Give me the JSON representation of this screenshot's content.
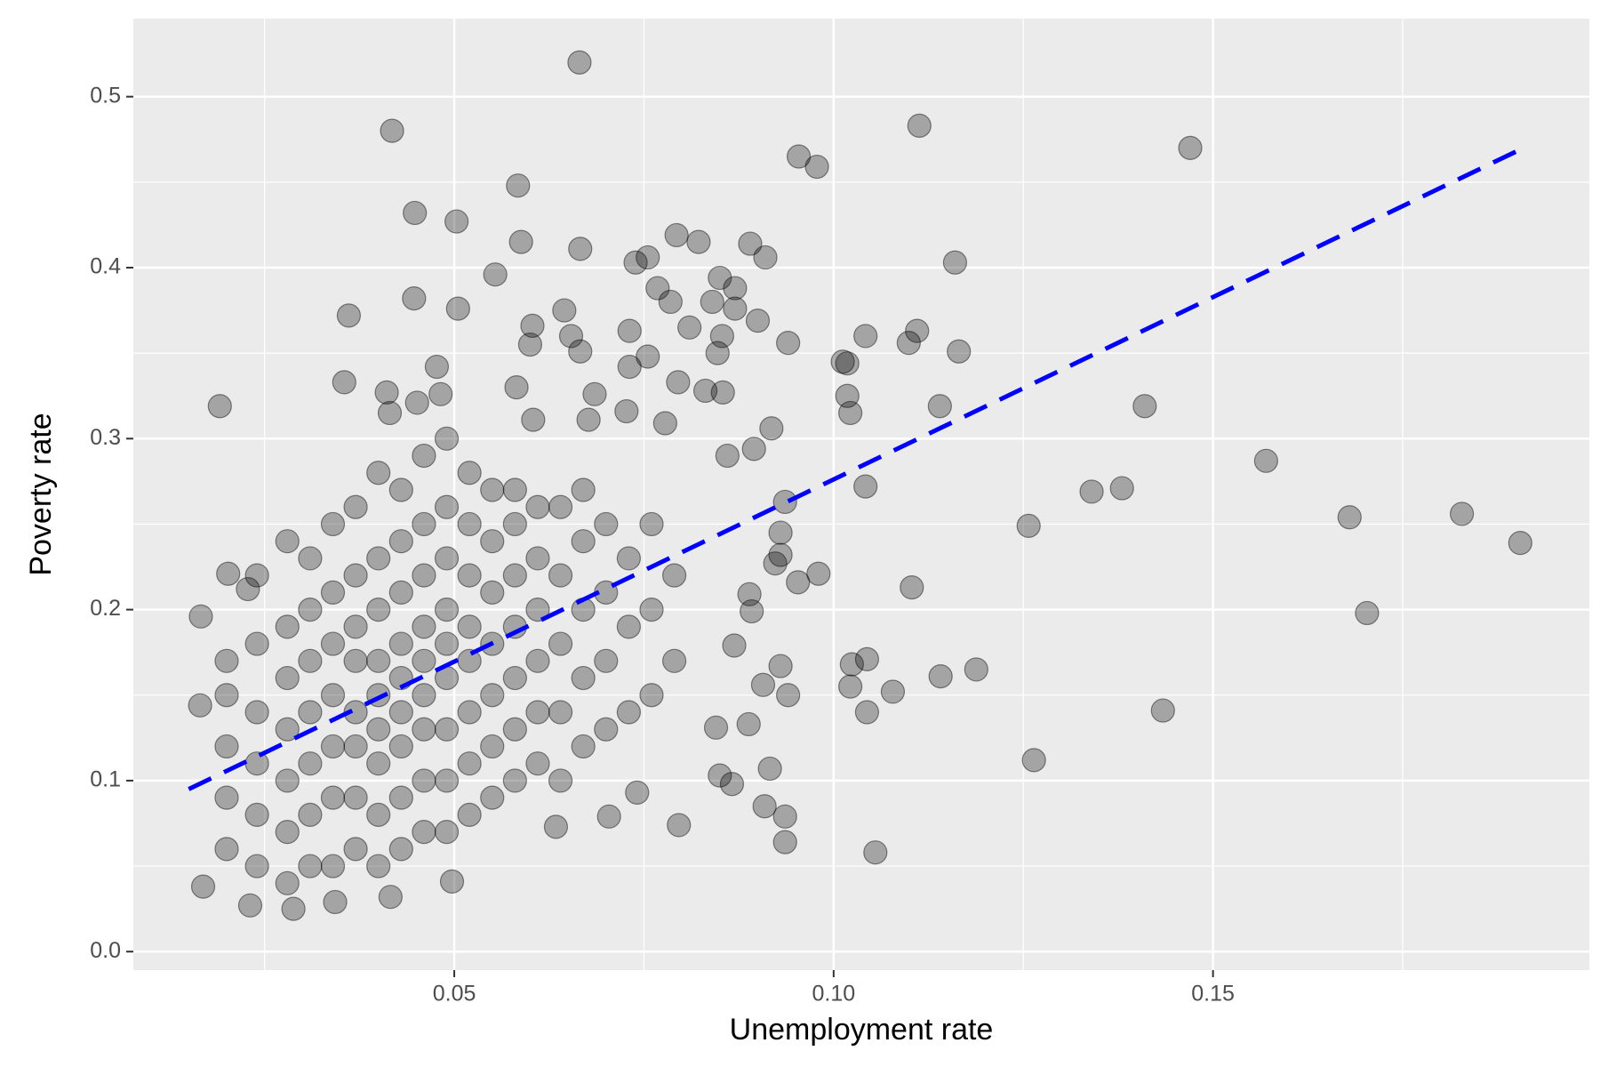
{
  "chart_data": {
    "type": "scatter",
    "x_label": "Unemployment rate",
    "y_label": "Poverty rate",
    "xlim": [
      0.0077,
      0.1996
    ],
    "ylim": [
      -0.0108,
      0.5456
    ],
    "xticks": [
      0.05,
      {
        "value": 0.1,
        "label": "0.10"
      },
      0.15
    ],
    "yticks": [
      {
        "value": 0,
        "label": "0.0"
      },
      0.1,
      0.2,
      0.3,
      0.4,
      0.5
    ],
    "x_minor_grid": [
      0.025,
      0.075,
      0.125,
      0.175
    ],
    "y_minor_grid": [
      0.05,
      0.15,
      0.25,
      0.35,
      0.45
    ],
    "grid": true,
    "color": "#000000",
    "x": [
      0.0665,
      0.0418,
      0.1113,
      0.147,
      0.0954,
      0.0978,
      0.0584,
      0.0448,
      0.0503,
      0.0588,
      0.0666,
      0.0793,
      0.0822,
      0.089,
      0.091,
      0.116,
      0.0739,
      0.0755,
      0.0554,
      0.085,
      0.087,
      0.0768,
      0.0447,
      0.0785,
      0.084,
      0.087,
      0.0505,
      0.0645,
      0.0361,
      0.09,
      0.081,
      0.0603,
      0.0731,
      0.111,
      0.0654,
      0.0853,
      0.1042,
      0.06,
      0.094,
      0.1099,
      0.1165,
      0.0666,
      0.0847,
      0.1012,
      0.1018,
      0.0477,
      0.0755,
      0.0731,
      0.0582,
      0.0355,
      0.0795,
      0.0831,
      0.0411,
      0.0482,
      0.0685,
      0.1018,
      0.0854,
      0.0191,
      0.141,
      0.114,
      0.0451,
      0.0415,
      0.1022,
      0.0604,
      0.0727,
      0.0918,
      0.0677,
      0.0778,
      0.157,
      0.086,
      0.0895,
      0.134,
      0.138,
      0.1042,
      0.0936,
      0.1257,
      0.168,
      0.1828,
      0.1905,
      0.093,
      0.093,
      0.0923,
      0.098,
      0.0953,
      0.1703,
      0.1103,
      0.0889,
      0.0892,
      0.0869,
      0.1024,
      0.1044,
      0.1141,
      0.1188,
      0.093,
      0.1022,
      0.1078,
      0.094,
      0.0907,
      0.1044,
      0.1434,
      0.0845,
      0.0888,
      0.1264,
      0.0916,
      0.085,
      0.0866,
      0.0909,
      0.0936,
      0.0796,
      0.0704,
      0.0634,
      0.0936,
      0.1055,
      0.0741,
      0.0497,
      0.0416,
      0.0166,
      0.0202,
      0.0228,
      0.0165,
      0.0169,
      0.0288,
      0.0231,
      0.0343,
      0.02,
      0.02,
      0.02,
      0.02,
      0.02,
      0.024,
      0.024,
      0.024,
      0.024,
      0.024,
      0.024,
      0.028,
      0.028,
      0.028,
      0.028,
      0.028,
      0.028,
      0.028,
      0.031,
      0.031,
      0.031,
      0.031,
      0.031,
      0.031,
      0.031,
      0.034,
      0.034,
      0.034,
      0.034,
      0.034,
      0.034,
      0.034,
      0.037,
      0.037,
      0.037,
      0.037,
      0.037,
      0.037,
      0.037,
      0.037,
      0.04,
      0.04,
      0.04,
      0.04,
      0.04,
      0.04,
      0.04,
      0.04,
      0.04,
      0.043,
      0.043,
      0.043,
      0.043,
      0.043,
      0.043,
      0.043,
      0.043,
      0.043,
      0.046,
      0.046,
      0.046,
      0.046,
      0.046,
      0.046,
      0.046,
      0.046,
      0.046,
      0.049,
      0.049,
      0.049,
      0.049,
      0.049,
      0.049,
      0.049,
      0.049,
      0.049,
      0.052,
      0.052,
      0.052,
      0.052,
      0.052,
      0.052,
      0.052,
      0.052,
      0.055,
      0.055,
      0.055,
      0.055,
      0.055,
      0.055,
      0.055,
      0.058,
      0.058,
      0.058,
      0.058,
      0.058,
      0.058,
      0.058,
      0.061,
      0.061,
      0.061,
      0.061,
      0.061,
      0.061,
      0.064,
      0.064,
      0.064,
      0.064,
      0.064,
      0.067,
      0.067,
      0.067,
      0.067,
      0.067,
      0.07,
      0.07,
      0.07,
      0.07,
      0.073,
      0.073,
      0.073,
      0.076,
      0.076,
      0.076,
      0.079,
      0.079
    ],
    "values": [
      0.52,
      0.48,
      0.483,
      0.47,
      0.465,
      0.459,
      0.448,
      0.432,
      0.427,
      0.415,
      0.411,
      0.419,
      0.415,
      0.414,
      0.406,
      0.403,
      0.403,
      0.406,
      0.396,
      0.394,
      0.388,
      0.388,
      0.382,
      0.38,
      0.38,
      0.376,
      0.376,
      0.375,
      0.372,
      0.369,
      0.365,
      0.366,
      0.363,
      0.363,
      0.36,
      0.36,
      0.36,
      0.355,
      0.356,
      0.356,
      0.351,
      0.351,
      0.35,
      0.345,
      0.344,
      0.342,
      0.348,
      0.342,
      0.33,
      0.333,
      0.333,
      0.328,
      0.327,
      0.326,
      0.326,
      0.325,
      0.327,
      0.319,
      0.319,
      0.319,
      0.321,
      0.315,
      0.315,
      0.311,
      0.316,
      0.306,
      0.311,
      0.309,
      0.287,
      0.29,
      0.294,
      0.269,
      0.271,
      0.272,
      0.263,
      0.249,
      0.254,
      0.256,
      0.239,
      0.245,
      0.232,
      0.227,
      0.221,
      0.216,
      0.198,
      0.213,
      0.209,
      0.199,
      0.179,
      0.168,
      0.171,
      0.161,
      0.165,
      0.167,
      0.155,
      0.152,
      0.15,
      0.156,
      0.14,
      0.141,
      0.131,
      0.133,
      0.112,
      0.107,
      0.103,
      0.098,
      0.085,
      0.079,
      0.074,
      0.079,
      0.073,
      0.064,
      0.058,
      0.093,
      0.041,
      0.032,
      0.196,
      0.221,
      0.212,
      0.144,
      0.038,
      0.025,
      0.027,
      0.029,
      0.06,
      0.09,
      0.12,
      0.15,
      0.17,
      0.05,
      0.08,
      0.11,
      0.14,
      0.18,
      0.22,
      0.04,
      0.07,
      0.1,
      0.13,
      0.16,
      0.19,
      0.24,
      0.05,
      0.08,
      0.11,
      0.14,
      0.17,
      0.2,
      0.23,
      0.05,
      0.09,
      0.12,
      0.15,
      0.18,
      0.21,
      0.25,
      0.06,
      0.09,
      0.12,
      0.14,
      0.17,
      0.19,
      0.22,
      0.26,
      0.05,
      0.08,
      0.11,
      0.13,
      0.15,
      0.17,
      0.2,
      0.23,
      0.28,
      0.06,
      0.09,
      0.12,
      0.14,
      0.16,
      0.18,
      0.21,
      0.24,
      0.27,
      0.07,
      0.1,
      0.13,
      0.15,
      0.17,
      0.19,
      0.22,
      0.25,
      0.29,
      0.07,
      0.1,
      0.13,
      0.16,
      0.18,
      0.2,
      0.23,
      0.26,
      0.3,
      0.08,
      0.11,
      0.14,
      0.17,
      0.19,
      0.22,
      0.25,
      0.28,
      0.09,
      0.12,
      0.15,
      0.18,
      0.21,
      0.24,
      0.27,
      0.1,
      0.13,
      0.16,
      0.19,
      0.22,
      0.25,
      0.27,
      0.11,
      0.14,
      0.17,
      0.2,
      0.23,
      0.26,
      0.1,
      0.14,
      0.18,
      0.22,
      0.26,
      0.12,
      0.16,
      0.2,
      0.24,
      0.27,
      0.13,
      0.17,
      0.21,
      0.25,
      0.14,
      0.19,
      0.23,
      0.15,
      0.2,
      0.25,
      0.17,
      0.22
    ],
    "trend": {
      "x": [
        0.015,
        0.19
      ],
      "values": [
        0.095,
        0.468
      ],
      "color": "#0000ff",
      "dashed": true
    }
  }
}
